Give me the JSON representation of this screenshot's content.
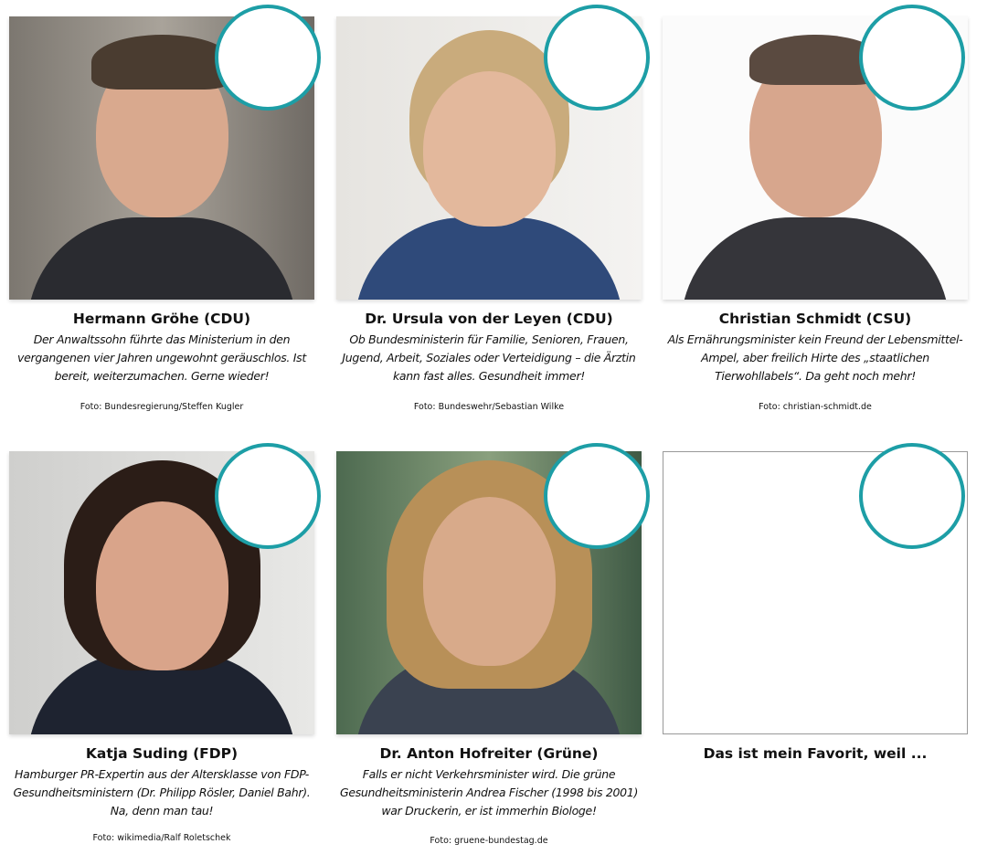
{
  "accent_color": "#1d9ea6",
  "cards": [
    {
      "name": "Hermann Gröhe (CDU)",
      "text": "Der Anwaltssohn führte das Ministerium in den vergangenen vier Jahren ungewohnt geräuschlos. Ist bereit, weiterzumachen. Gerne wieder!",
      "credit": "Foto: Bundesregierung/Steffen Kugler"
    },
    {
      "name": "Dr. Ursula von der Leyen (CDU)",
      "text": "Ob Bundesministerin für Familie, Senioren, Frauen, Jugend, Arbeit, Soziales oder Verteidigung – die Ärztin kann fast alles. Gesundheit immer!",
      "credit": "Foto: Bundeswehr/Sebastian Wilke"
    },
    {
      "name": "Christian Schmidt (CSU)",
      "text": "Als Ernährungsminister kein Freund der Lebensmittel-Ampel, aber freilich Hirte des „staatlichen Tierwohllabels“. Da geht noch mehr!",
      "credit": "Foto: christian-schmidt.de"
    },
    {
      "name": "Katja Suding (FDP)",
      "text": "Hamburger PR-Expertin aus der Altersklasse von FDP-Gesundheitsministern (Dr. Philipp Rösler, Daniel Bahr). Na, denn man tau!",
      "credit": "Foto: wikimedia/Ralf Roletschek"
    },
    {
      "name": "Dr. Anton Hofreiter (Grüne)",
      "text": "Falls er nicht Verkehrsminister wird. Die grüne Gesundheitsministerin Andrea Fischer (1998 bis 2001) war Druckerin, er ist immerhin Biologe!",
      "credit": "Foto: gruene-bundestag.de"
    },
    {
      "name": "Das ist mein Favorit, weil ..."
    }
  ]
}
